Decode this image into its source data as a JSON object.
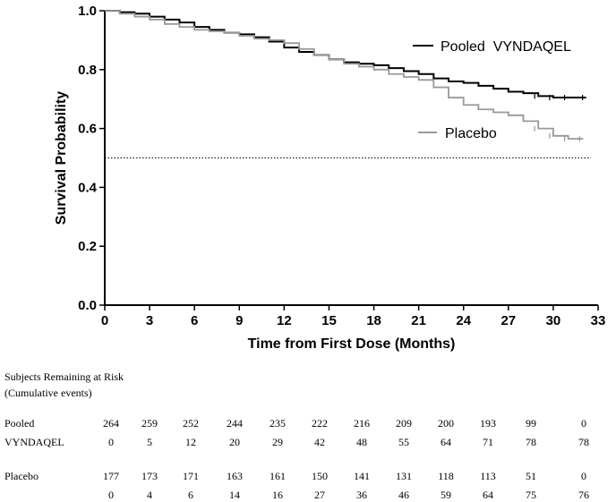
{
  "chart_data": {
    "type": "line",
    "xlabel": "Time from First Dose (Months)",
    "ylabel": "Survival Probability",
    "xlim": [
      0,
      33
    ],
    "ylim": [
      0,
      1.0
    ],
    "x_ticks": [
      "0",
      "3",
      "6",
      "9",
      "12",
      "15",
      "18",
      "21",
      "24",
      "27",
      "30",
      "33"
    ],
    "y_ticks": [
      "0.0",
      "0.2",
      "0.4",
      "0.6",
      "0.8",
      "1.0"
    ],
    "reference_line": 0.5,
    "series": [
      {
        "name": "Pooled VYNDAQEL",
        "color": "#000000",
        "x": [
          0,
          1,
          2,
          3,
          4,
          5,
          6,
          7,
          8,
          9,
          10,
          11,
          12,
          13,
          14,
          15,
          16,
          17,
          18,
          19,
          20,
          21,
          22,
          23,
          24,
          25,
          26,
          27,
          28,
          29,
          30,
          31,
          32.2
        ],
        "y": [
          1.0,
          0.995,
          0.99,
          0.98,
          0.97,
          0.96,
          0.945,
          0.935,
          0.925,
          0.92,
          0.91,
          0.895,
          0.875,
          0.86,
          0.85,
          0.835,
          0.825,
          0.82,
          0.815,
          0.805,
          0.795,
          0.785,
          0.77,
          0.76,
          0.755,
          0.745,
          0.735,
          0.725,
          0.72,
          0.71,
          0.705,
          0.705,
          0.705
        ]
      },
      {
        "name": "Placebo",
        "color": "#999999",
        "x": [
          0,
          1,
          2,
          3,
          4,
          5,
          6,
          7,
          8,
          9,
          10,
          11,
          12,
          13,
          14,
          15,
          16,
          17,
          18,
          19,
          20,
          21,
          22,
          23,
          24,
          25,
          26,
          27,
          28,
          29,
          30,
          31,
          32
        ],
        "y": [
          1.0,
          0.99,
          0.98,
          0.97,
          0.955,
          0.945,
          0.935,
          0.93,
          0.925,
          0.915,
          0.905,
          0.9,
          0.89,
          0.87,
          0.85,
          0.835,
          0.82,
          0.81,
          0.8,
          0.785,
          0.775,
          0.765,
          0.74,
          0.705,
          0.68,
          0.665,
          0.655,
          0.645,
          0.625,
          0.6,
          0.575,
          0.565,
          0.565
        ]
      }
    ],
    "legend": [
      {
        "label": "Pooled  VYNDAQEL",
        "position": "upper-right"
      },
      {
        "label": "Placebo",
        "position": "right"
      }
    ]
  },
  "risk_table": {
    "title": "Subjects Remaining at Risk",
    "subtitle": "(Cumulative events)",
    "groups": [
      {
        "label_line1": "Pooled",
        "label_line2": "VYNDAQEL",
        "at_risk": [
          "264",
          "259",
          "252",
          "244",
          "235",
          "222",
          "216",
          "209",
          "200",
          "193",
          "99",
          "0"
        ],
        "events": [
          "0",
          "5",
          "12",
          "20",
          "29",
          "42",
          "48",
          "55",
          "64",
          "71",
          "78",
          "78"
        ]
      },
      {
        "label_line1": "Placebo",
        "label_line2": "",
        "at_risk": [
          "177",
          "173",
          "171",
          "163",
          "161",
          "150",
          "141",
          "131",
          "118",
          "113",
          "51",
          "0"
        ],
        "events": [
          "0",
          "4",
          "6",
          "14",
          "16",
          "27",
          "36",
          "46",
          "59",
          "64",
          "75",
          "76"
        ]
      }
    ]
  }
}
